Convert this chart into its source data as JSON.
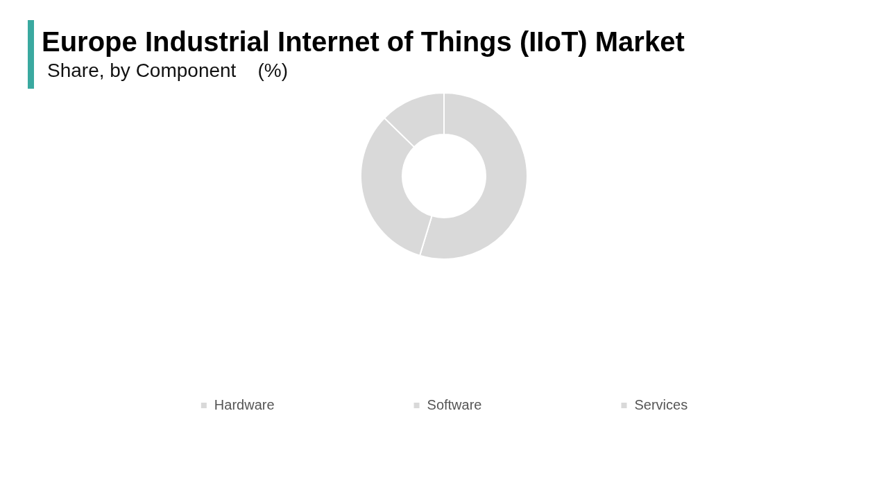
{
  "chart_data": {
    "type": "donut",
    "title": "Europe Industrial Internet of Things (IIoT) Market",
    "subtitle": "Share, by Component    (%)",
    "categories": [
      "Hardware",
      "Software",
      "Services"
    ],
    "values": [
      54.7,
      32.6,
      12.7
    ],
    "colors": [
      "#d9d9d9",
      "#d9d9d9",
      "#d9d9d9"
    ],
    "legend": "bottom"
  }
}
